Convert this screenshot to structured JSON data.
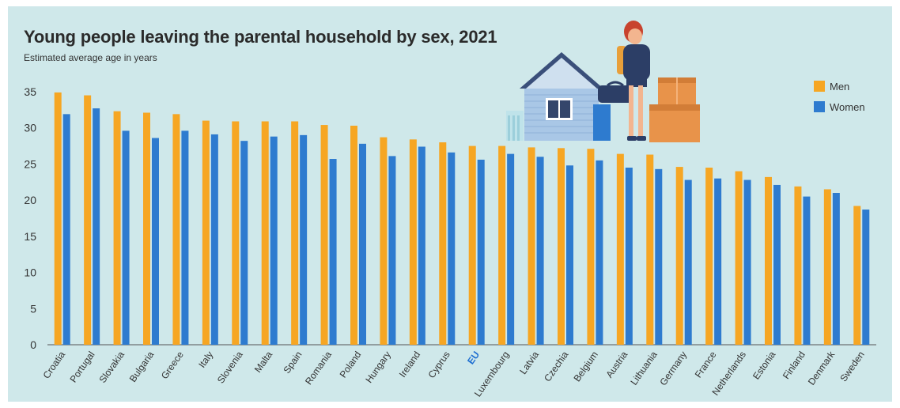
{
  "chart_data": {
    "type": "bar",
    "title": "Young people leaving the parental household by sex, 2021",
    "subtitle": "Estimated average age in years",
    "categories": [
      "Croatia",
      "Portugal",
      "Slovakia",
      "Bulgaria",
      "Greece",
      "Italy",
      "Slovenia",
      "Malta",
      "Spain",
      "Romania",
      "Poland",
      "Hungary",
      "Ireland",
      "Cyprus",
      "EU",
      "Luxembourg",
      "Latvia",
      "Czechia",
      "Belgium",
      "Austria",
      "Lithuania",
      "Germany",
      "France",
      "Netherlands",
      "Estonia",
      "Finland",
      "Denmark",
      "Sweden"
    ],
    "highlight_category": "EU",
    "series": [
      {
        "name": "Men",
        "color": "#f6a623",
        "values": [
          34.9,
          34.5,
          32.3,
          32.1,
          31.9,
          31.0,
          30.9,
          30.9,
          30.9,
          30.4,
          30.3,
          28.7,
          28.4,
          28.0,
          27.5,
          27.5,
          27.3,
          27.2,
          27.1,
          26.4,
          26.3,
          24.6,
          24.5,
          24.0,
          23.2,
          21.9,
          21.5,
          19.2
        ]
      },
      {
        "name": "Women",
        "color": "#2e7bcf",
        "values": [
          31.9,
          32.7,
          29.6,
          28.6,
          29.6,
          29.1,
          28.2,
          28.8,
          29.0,
          25.7,
          27.8,
          26.1,
          27.4,
          26.6,
          25.6,
          26.4,
          26.0,
          24.8,
          25.5,
          24.5,
          24.3,
          22.8,
          23.0,
          22.8,
          22.1,
          20.5,
          21.0,
          18.7
        ]
      }
    ],
    "y_ticks": [
      0,
      5,
      10,
      15,
      20,
      25,
      30,
      35
    ],
    "ylim": [
      0,
      35
    ],
    "grid": false,
    "legend_position": "top-right"
  },
  "illustration": {
    "description_icons": [
      "house-icon",
      "woman-with-suitcase-icon",
      "cardboard-boxes-icon"
    ]
  }
}
